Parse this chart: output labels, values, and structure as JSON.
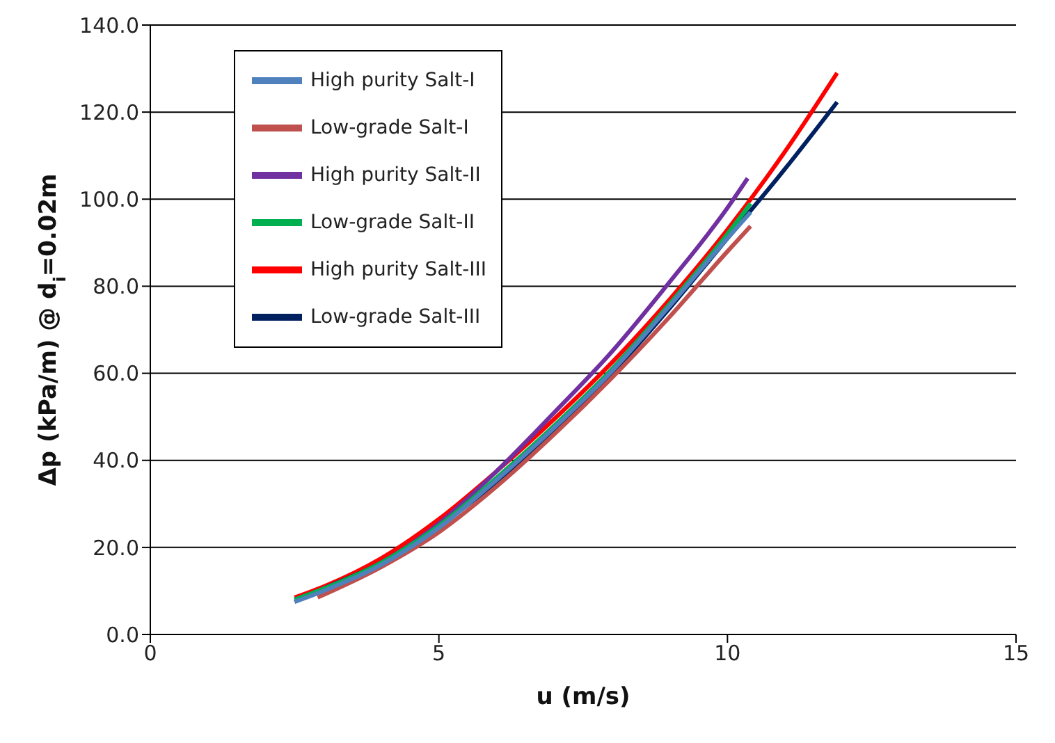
{
  "chart_data": {
    "type": "line",
    "xlabel": "u (m/s)",
    "ylabel": "Δp (kPa/m) @ d$_{i}$=0.02m",
    "xlim": [
      0,
      15
    ],
    "xticks": [
      0,
      5,
      10,
      15
    ],
    "ylim": [
      0,
      140
    ],
    "yticks": [
      {
        "value": 0,
        "label": "0.0"
      },
      {
        "value": 20,
        "label": "20.0"
      },
      {
        "value": 40,
        "label": "40.0"
      },
      {
        "value": 60,
        "label": "60.0"
      },
      {
        "value": 80,
        "label": "80.0"
      },
      {
        "value": 100,
        "label": "100.0"
      },
      {
        "value": 120,
        "label": "120.0"
      },
      {
        "value": 140,
        "label": "140.0"
      }
    ],
    "grid": "y",
    "legend": "top left",
    "marker": "none",
    "line_style": "solid",
    "series": [
      {
        "name": "High purity Salt-I",
        "color": "#4f81bd",
        "x": [
          2.5,
          3,
          4,
          5,
          6,
          7,
          8,
          9,
          10,
          10.4
        ],
        "values": [
          7.5,
          10,
          16,
          24.5,
          35.5,
          47.5,
          60.5,
          75.5,
          91,
          97
        ]
      },
      {
        "name": "Low-grade Salt-I",
        "color": "#c0504d",
        "x": [
          2.9,
          4,
          5,
          6,
          7,
          8,
          9,
          10,
          10.4
        ],
        "values": [
          8.5,
          15.5,
          23.5,
          34,
          46,
          59,
          73,
          88,
          93.8
        ]
      },
      {
        "name": "High purity Salt-II",
        "color": "#7030a0",
        "x": [
          2.5,
          3,
          4,
          5,
          6,
          7,
          8,
          9,
          10,
          10.35
        ],
        "values": [
          8,
          10.5,
          16.5,
          25.5,
          37.5,
          51,
          65,
          81,
          98,
          104.8
        ]
      },
      {
        "name": "Low-grade Salt-II",
        "color": "#00b050",
        "x": [
          2.5,
          3,
          4,
          5,
          6,
          7,
          8,
          9,
          10,
          10.4
        ],
        "values": [
          8,
          10.5,
          16.5,
          25,
          36,
          48,
          61,
          76,
          92,
          99
        ]
      },
      {
        "name": "High purity Salt-III",
        "color": "#ff0000",
        "x": [
          2.5,
          3,
          4,
          5,
          6,
          7,
          8,
          9,
          10,
          11,
          11.9
        ],
        "values": [
          8.5,
          11,
          17.5,
          26.5,
          37.5,
          49.5,
          62.5,
          77,
          93,
          111,
          129
        ]
      },
      {
        "name": "Low-grade Salt-III",
        "color": "#002060",
        "x": [
          2.5,
          3,
          4,
          5,
          6,
          7,
          8,
          9,
          10,
          11,
          11.9
        ],
        "values": [
          7.5,
          10.5,
          16.5,
          25,
          35,
          47,
          60,
          75,
          91,
          107,
          122.3
        ]
      }
    ]
  }
}
